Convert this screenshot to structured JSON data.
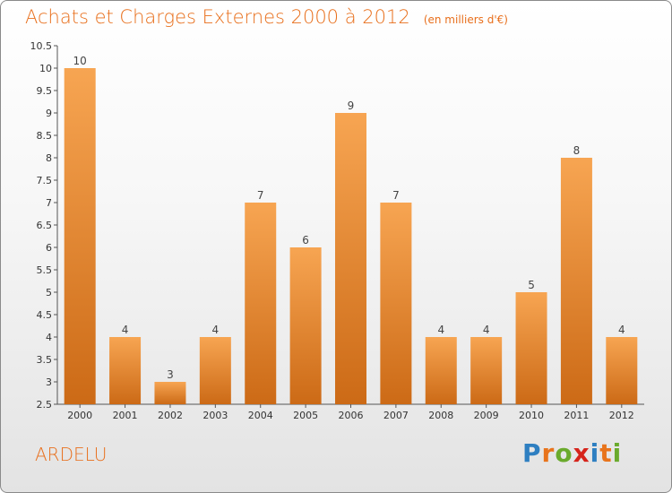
{
  "header": {
    "title": "Achats et Charges Externes 2000 à 2012",
    "unit": "(en milliers d'€)"
  },
  "footer": {
    "commune": "ARDELU",
    "logo_text": "Proxiti",
    "logo_letters": [
      "P",
      "r",
      "o",
      "x",
      "i",
      "t",
      "i"
    ],
    "logo_colors": [
      "#2e7fc1",
      "#e8741c",
      "#6aaa2c",
      "#d6241b",
      "#2e7fc1",
      "#e8741c",
      "#6aaa2c"
    ]
  },
  "colors": {
    "bar_top": "#f7a552",
    "bar_bottom": "#cc6a16",
    "title": "#e86f1c"
  },
  "chart_data": {
    "type": "bar",
    "categories": [
      "2000",
      "2001",
      "2002",
      "2003",
      "2004",
      "2005",
      "2006",
      "2007",
      "2008",
      "2009",
      "2010",
      "2011",
      "2012"
    ],
    "values": [
      10,
      4,
      3,
      4,
      7,
      6,
      9,
      7,
      4,
      4,
      5,
      8,
      4
    ],
    "ylim": [
      2.5,
      10.5
    ],
    "yticks": [
      "2.5",
      "3",
      "3.5",
      "4",
      "4.5",
      "5",
      "5.5",
      "6",
      "6.5",
      "7",
      "7.5",
      "8",
      "8.5",
      "9",
      "9.5",
      "10",
      "10.5"
    ],
    "title": "Achats et Charges Externes 2000 à 2012",
    "xlabel": "",
    "ylabel": "",
    "grid": false,
    "data_labels": true
  }
}
